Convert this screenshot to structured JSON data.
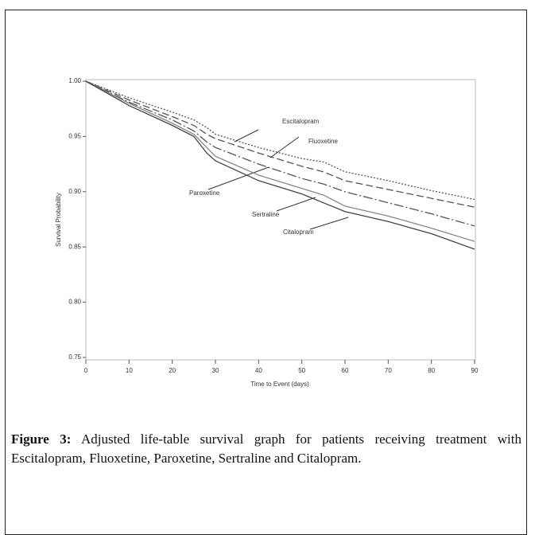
{
  "chart_data": {
    "type": "line",
    "x_label": "Time to Event (days)",
    "y_label": "Survival Probability",
    "xlim": [
      0,
      90
    ],
    "xticks": [
      0,
      10,
      20,
      30,
      40,
      50,
      60,
      70,
      80,
      90
    ],
    "ylim": [
      0.75,
      1.0
    ],
    "yticks": [
      {
        "value": 0.75,
        "label": "0.75"
      },
      {
        "value": 0.8,
        "label": "0.80"
      },
      {
        "value": 0.85,
        "label": "0.85"
      },
      {
        "value": 0.9,
        "label": "0.90"
      },
      {
        "value": 0.95,
        "label": "0.95"
      },
      {
        "value": 1.0,
        "label": "1.00"
      }
    ],
    "x": [
      0,
      10,
      20,
      25,
      28,
      30,
      40,
      50,
      55,
      60,
      70,
      80,
      90
    ],
    "series": [
      {
        "name": "Escitalopram",
        "color": "#555555",
        "dash": "2,2",
        "values": [
          1.0,
          0.985,
          0.972,
          0.965,
          0.958,
          0.952,
          0.94,
          0.93,
          0.927,
          0.918,
          0.91,
          0.901,
          0.893
        ]
      },
      {
        "name": "Fluoxetine",
        "color": "#555555",
        "dash": "9,4",
        "values": [
          1.0,
          0.983,
          0.968,
          0.96,
          0.952,
          0.948,
          0.935,
          0.923,
          0.918,
          0.91,
          0.902,
          0.894,
          0.886
        ]
      },
      {
        "name": "Paroxetine",
        "color": "#555555",
        "dash": "12,3,2,3",
        "values": [
          1.0,
          0.981,
          0.965,
          0.955,
          0.945,
          0.94,
          0.925,
          0.912,
          0.907,
          0.9,
          0.89,
          0.88,
          0.869
        ]
      },
      {
        "name": "Sertraline",
        "color": "#888888",
        "dash": "none",
        "values": [
          1.0,
          0.98,
          0.962,
          0.952,
          0.94,
          0.932,
          0.915,
          0.903,
          0.897,
          0.887,
          0.878,
          0.867,
          0.855
        ]
      },
      {
        "name": "Citalopram",
        "color": "#444444",
        "dash": "none",
        "values": [
          1.0,
          0.978,
          0.96,
          0.95,
          0.935,
          0.928,
          0.91,
          0.898,
          0.89,
          0.882,
          0.873,
          0.862,
          0.848
        ]
      }
    ]
  },
  "caption": {
    "label": "Figure 3:",
    "text": "Adjusted life-table survival graph for patients receiving treatment with Escitalopram, Fluoxetine, Paroxetine, Sertraline and Citalopram."
  }
}
